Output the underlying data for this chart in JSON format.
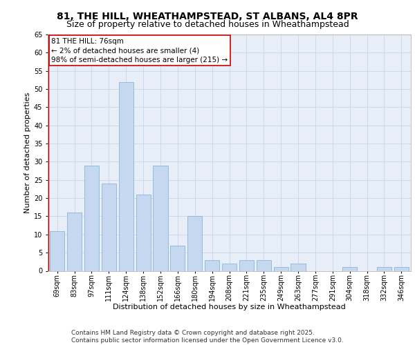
{
  "title_line1": "81, THE HILL, WHEATHAMPSTEAD, ST ALBANS, AL4 8PR",
  "title_line2": "Size of property relative to detached houses in Wheathampstead",
  "xlabel": "Distribution of detached houses by size in Wheathampstead",
  "ylabel": "Number of detached properties",
  "categories": [
    "69sqm",
    "83sqm",
    "97sqm",
    "111sqm",
    "124sqm",
    "138sqm",
    "152sqm",
    "166sqm",
    "180sqm",
    "194sqm",
    "208sqm",
    "221sqm",
    "235sqm",
    "249sqm",
    "263sqm",
    "277sqm",
    "291sqm",
    "304sqm",
    "318sqm",
    "332sqm",
    "346sqm"
  ],
  "values": [
    11,
    16,
    29,
    24,
    52,
    21,
    29,
    7,
    15,
    3,
    2,
    3,
    3,
    1,
    2,
    0,
    0,
    1,
    0,
    1,
    1
  ],
  "bar_color": "#c5d8f0",
  "bar_edge_color": "#7aafd4",
  "highlight_line_color": "#cc0000",
  "ylim": [
    0,
    65
  ],
  "yticks": [
    0,
    5,
    10,
    15,
    20,
    25,
    30,
    35,
    40,
    45,
    50,
    55,
    60,
    65
  ],
  "annotation_title": "81 THE HILL: 76sqm",
  "annotation_line2": "← 2% of detached houses are smaller (4)",
  "annotation_line3": "98% of semi-detached houses are larger (215) →",
  "annotation_box_color": "#ffffff",
  "annotation_box_edge": "#cc0000",
  "grid_color": "#c8d4e8",
  "background_color": "#e8eef8",
  "footer_line1": "Contains HM Land Registry data © Crown copyright and database right 2025.",
  "footer_line2": "Contains public sector information licensed under the Open Government Licence v3.0.",
  "title_fontsize": 10,
  "subtitle_fontsize": 9,
  "axis_label_fontsize": 8,
  "tick_fontsize": 7,
  "annotation_fontsize": 7.5,
  "footer_fontsize": 6.5
}
